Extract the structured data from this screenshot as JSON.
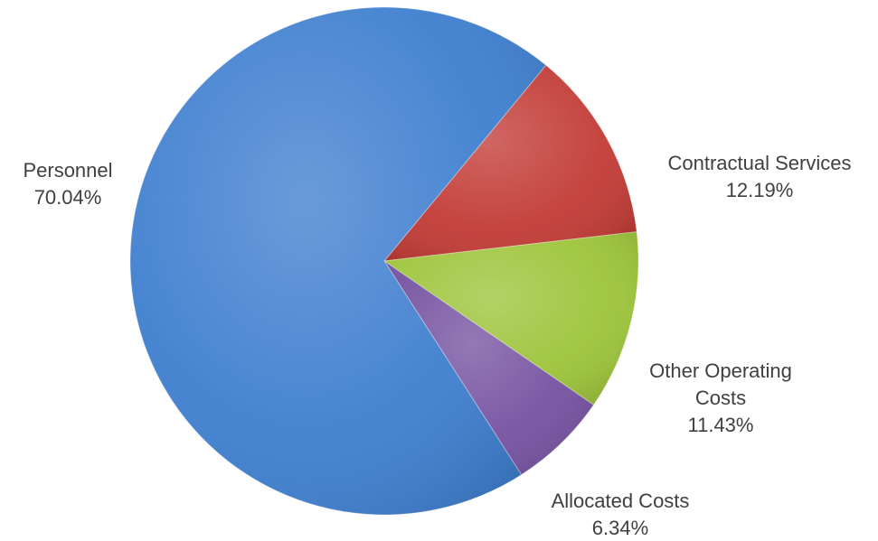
{
  "chart_data": {
    "type": "pie",
    "title": "",
    "slices": [
      {
        "label": "Contractual Services",
        "label_lines": [
          "Contractual Services"
        ],
        "pct_text": "12.19%",
        "value": 12.19,
        "color": "#c23b36"
      },
      {
        "label": "Other Operating Costs",
        "label_lines": [
          "Other Operating",
          "Costs"
        ],
        "pct_text": "11.43%",
        "value": 11.43,
        "color": "#9dc43a"
      },
      {
        "label": "Allocated Costs",
        "label_lines": [
          "Allocated Costs"
        ],
        "pct_text": "6.34%",
        "value": 6.34,
        "color": "#7552a0"
      },
      {
        "label": "Personnel",
        "label_lines": [
          "Personnel"
        ],
        "pct_text": "70.04%",
        "value": 70.04,
        "color": "#3f7fcf"
      }
    ],
    "start_angle_deg": 50.5,
    "direction": "clockwise",
    "legend": "none",
    "data_labels": "outside, category name and percentage"
  }
}
